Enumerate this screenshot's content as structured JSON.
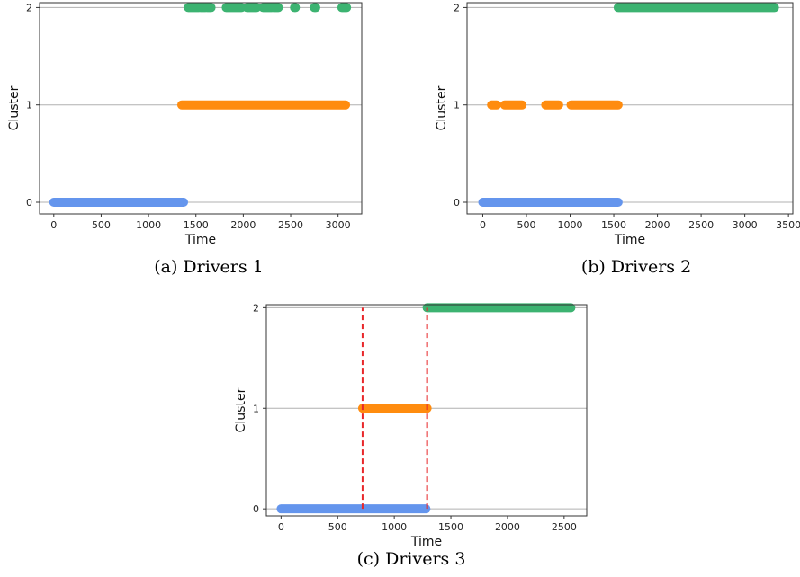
{
  "colors": {
    "cluster_0": "#6495ED",
    "cluster_1": "#FF8C0F",
    "cluster_2": "#3CB371",
    "marker_line": "#E8272A",
    "grid": "#b0b0b0",
    "frame": "#333333"
  },
  "chart_data": [
    {
      "type": "scatter",
      "caption": "(a) Drivers 1",
      "xlabel": "Time",
      "ylabel": "Cluster",
      "xlim": [
        -150,
        3250
      ],
      "ylim": [
        -0.12,
        2.05
      ],
      "xticks": [
        0,
        500,
        1000,
        1500,
        2000,
        2500,
        3000
      ],
      "yticks": [
        0,
        1,
        2
      ],
      "grid": "horizontal",
      "segments": [
        {
          "cluster": 0,
          "start": 0,
          "end": 1370
        },
        {
          "cluster": 1,
          "start": 1350,
          "end": 3080
        },
        {
          "cluster": 2,
          "start": 1420,
          "end": 1530
        },
        {
          "cluster": 2,
          "start": 1550,
          "end": 1600
        },
        {
          "cluster": 2,
          "start": 1620,
          "end": 1660
        },
        {
          "cluster": 2,
          "start": 1820,
          "end": 1980
        },
        {
          "cluster": 2,
          "start": 2040,
          "end": 2140
        },
        {
          "cluster": 2,
          "start": 2210,
          "end": 2300
        },
        {
          "cluster": 2,
          "start": 2320,
          "end": 2370
        },
        {
          "cluster": 2,
          "start": 2540,
          "end": 2550
        },
        {
          "cluster": 2,
          "start": 2750,
          "end": 2765
        },
        {
          "cluster": 2,
          "start": 3040,
          "end": 3090
        }
      ],
      "vlines": []
    },
    {
      "type": "scatter",
      "caption": "(b) Drivers 2",
      "xlabel": "Time",
      "ylabel": "Cluster",
      "xlim": [
        -180,
        3550
      ],
      "ylim": [
        -0.12,
        2.05
      ],
      "xticks": [
        0,
        500,
        1000,
        1500,
        2000,
        2500,
        3000,
        3500
      ],
      "yticks": [
        0,
        1,
        2
      ],
      "grid": "horizontal",
      "segments": [
        {
          "cluster": 0,
          "start": 0,
          "end": 1550
        },
        {
          "cluster": 1,
          "start": 100,
          "end": 160
        },
        {
          "cluster": 1,
          "start": 250,
          "end": 450
        },
        {
          "cluster": 1,
          "start": 720,
          "end": 870
        },
        {
          "cluster": 1,
          "start": 1010,
          "end": 1550
        },
        {
          "cluster": 2,
          "start": 1550,
          "end": 3340
        }
      ],
      "vlines": []
    },
    {
      "type": "scatter",
      "caption": "(c) Drivers 3",
      "xlabel": "Time",
      "ylabel": "Cluster",
      "xlim": [
        -130,
        2700
      ],
      "ylim": [
        -0.07,
        2.03
      ],
      "xticks": [
        0,
        500,
        1000,
        1500,
        2000,
        2500
      ],
      "yticks": [
        0,
        1,
        2
      ],
      "grid": "horizontal",
      "segments": [
        {
          "cluster": 0,
          "start": 0,
          "end": 1280
        },
        {
          "cluster": 1,
          "start": 720,
          "end": 1290
        },
        {
          "cluster": 2,
          "start": 1290,
          "end": 2560
        }
      ],
      "vlines": [
        720,
        1290
      ]
    }
  ]
}
